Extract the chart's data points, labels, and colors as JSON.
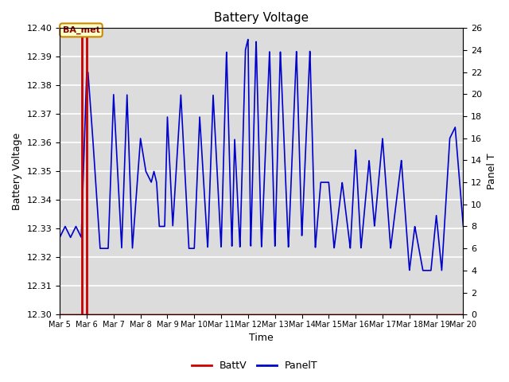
{
  "title": "Battery Voltage",
  "xlabel": "Time",
  "ylabel_left": "Battery Voltage",
  "ylabel_right": "Panel T",
  "bg_color": "#dcdcdc",
  "ylim_left": [
    12.3,
    12.4
  ],
  "ylim_right": [
    0,
    26
  ],
  "yticks_left": [
    12.3,
    12.31,
    12.32,
    12.33,
    12.34,
    12.35,
    12.36,
    12.37,
    12.38,
    12.39,
    12.4
  ],
  "yticks_right": [
    0,
    2,
    4,
    6,
    8,
    10,
    12,
    14,
    16,
    18,
    20,
    22,
    24,
    26
  ],
  "xtick_labels": [
    "Mar 5",
    "Mar 6",
    "Mar 7",
    "Mar 8",
    "Mar 9",
    "Mar 10",
    "Mar 11",
    "Mar 12",
    "Mar 13",
    "Mar 14",
    "Mar 15",
    "Mar 16",
    "Mar 17",
    "Mar 18",
    "Mar 19",
    "Mar 20"
  ],
  "vline_color": "#cc0000",
  "annotation_text": "BA_met",
  "line_color_batt": "#cc0000",
  "line_color_panel": "#0000cc",
  "legend_labels": [
    "BattV",
    "PanelT"
  ],
  "panel_pts_t": [
    0.0,
    0.2,
    0.4,
    0.6,
    0.8,
    1.0,
    1.05,
    1.2,
    1.5,
    1.8,
    2.0,
    2.3,
    2.5,
    2.7,
    3.0,
    3.2,
    3.4,
    3.5,
    3.6,
    3.7,
    3.9,
    4.0,
    4.2,
    4.5,
    4.8,
    5.0,
    5.2,
    5.5,
    5.7,
    6.0,
    6.2,
    6.4,
    6.5,
    6.7,
    6.9,
    7.0,
    7.1,
    7.3,
    7.5,
    7.8,
    8.0,
    8.2,
    8.5,
    8.8,
    9.0,
    9.3,
    9.5,
    9.7,
    10.0,
    10.2,
    10.5,
    10.8,
    11.0,
    11.2,
    11.5,
    11.7,
    12.0,
    12.3,
    12.5,
    12.7,
    13.0,
    13.2,
    13.5,
    13.8,
    14.0,
    14.2,
    14.5,
    14.7,
    15.0
  ],
  "panel_pts_v": [
    7,
    8,
    7,
    8,
    7,
    22,
    22,
    17,
    6,
    6,
    20,
    6,
    20,
    6,
    16,
    13,
    12,
    13,
    12,
    8,
    8,
    18,
    8,
    20,
    6,
    6,
    18,
    6,
    20,
    6,
    24,
    6,
    16,
    6,
    24,
    25,
    6,
    25,
    6,
    24,
    6,
    24,
    6,
    24,
    7,
    24,
    6,
    12,
    12,
    6,
    12,
    6,
    15,
    6,
    14,
    8,
    16,
    6,
    10,
    14,
    4,
    8,
    4,
    4,
    9,
    4,
    16,
    17,
    8
  ]
}
